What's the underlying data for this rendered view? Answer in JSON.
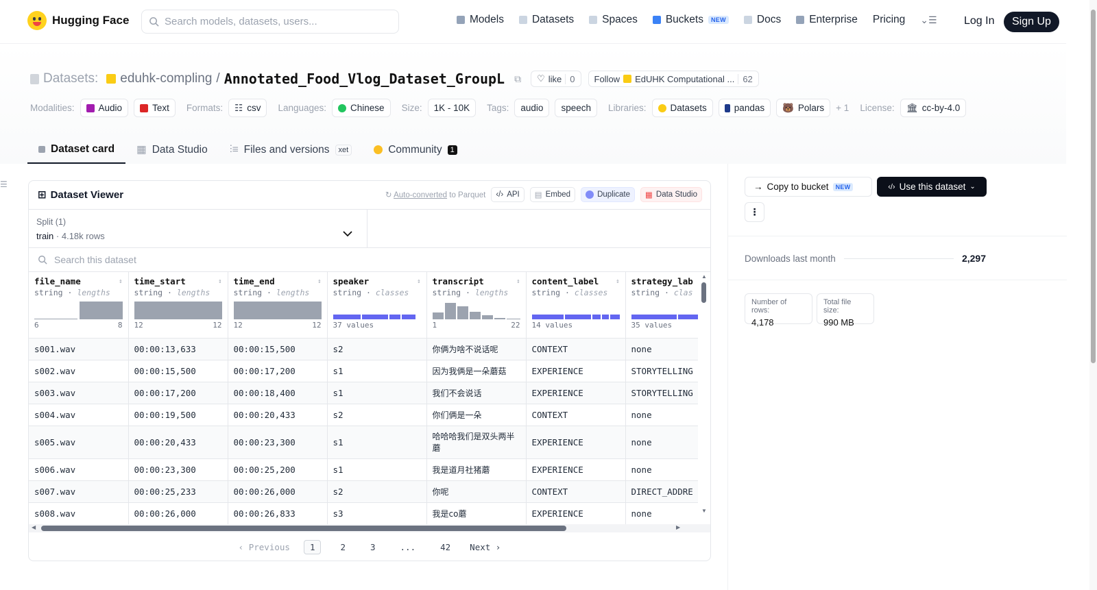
{
  "nav": {
    "brand": "Hugging Face",
    "search_placeholder": "Search models, datasets, users...",
    "links": [
      "Models",
      "Datasets",
      "Spaces",
      "Buckets",
      "Docs",
      "Enterprise",
      "Pricing"
    ],
    "buckets_badge": "NEW",
    "login": "Log In",
    "signup": "Sign Up"
  },
  "header": {
    "datasets_label": "Datasets:",
    "org": "eduhk-compling",
    "sep": "/",
    "repo": "Annotated_Food_Vlog_Dataset_GroupL",
    "like_label": "like",
    "like_count": "0",
    "follow_label": "Follow",
    "follow_org": "EdUHK Computational ...",
    "follow_count": "62"
  },
  "tags": {
    "modalities_label": "Modalities:",
    "modalities": [
      "Audio",
      "Text"
    ],
    "formats_label": "Formats:",
    "format": "csv",
    "languages_label": "Languages:",
    "language": "Chinese",
    "size_label": "Size:",
    "size": "1K - 10K",
    "tags_label": "Tags:",
    "tags": [
      "audio",
      "speech"
    ],
    "libraries_label": "Libraries:",
    "libraries": [
      "Datasets",
      "pandas",
      "Polars"
    ],
    "libraries_more": "+ 1",
    "license_label": "License:",
    "license": "cc-by-4.0"
  },
  "tabs": {
    "card": "Dataset card",
    "studio": "Data Studio",
    "files": "Files and versions",
    "xet": "xet",
    "community": "Community",
    "community_count": "1"
  },
  "viewer": {
    "title": "Dataset Viewer",
    "autoconv": "Auto-converted",
    "autoconv_rest": "to Parquet",
    "api": "API",
    "embed": "Embed",
    "duplicate": "Duplicate",
    "studio": "Data Studio",
    "split_label": "Split (1)",
    "split_name": "train",
    "split_rows": "4.18k rows",
    "search_placeholder": "Search this dataset"
  },
  "columns": [
    {
      "name": "file_name",
      "type": "string",
      "kind": "lengths",
      "min": "6",
      "max": "8"
    },
    {
      "name": "time_start",
      "type": "string",
      "kind": "lengths",
      "min": "12",
      "max": "12"
    },
    {
      "name": "time_end",
      "type": "string",
      "kind": "lengths",
      "min": "12",
      "max": "12"
    },
    {
      "name": "speaker",
      "type": "string",
      "kind": "classes",
      "values": "37 values"
    },
    {
      "name": "transcript",
      "type": "string",
      "kind": "lengths",
      "min": "1",
      "max": "22"
    },
    {
      "name": "content_label",
      "type": "string",
      "kind": "classes",
      "values": "14 values"
    },
    {
      "name": "strategy_lab",
      "type": "string",
      "kind": "clas",
      "values": "35 values"
    }
  ],
  "rows": [
    [
      "s001.wav",
      "00:00:13,633",
      "00:00:15,500",
      "s2",
      "你俩为啥不说话呢",
      "CONTEXT",
      "none"
    ],
    [
      "s002.wav",
      "00:00:15,500",
      "00:00:17,200",
      "s1",
      "因为我俩是一朵蘑菇",
      "EXPERIENCE",
      "STORYTELLING"
    ],
    [
      "s003.wav",
      "00:00:17,200",
      "00:00:18,400",
      "s1",
      "我们不会说话",
      "EXPERIENCE",
      "STORYTELLING"
    ],
    [
      "s004.wav",
      "00:00:19,500",
      "00:00:20,433",
      "s2",
      "你们俩是一朵",
      "CONTEXT",
      "none"
    ],
    [
      "s005.wav",
      "00:00:20,433",
      "00:00:23,300",
      "s1",
      "哈哈哈我们是双头两半蘑",
      "EXPERIENCE",
      "none"
    ],
    [
      "s006.wav",
      "00:00:23,300",
      "00:00:25,200",
      "s1",
      "我是道月社猪蘑",
      "EXPERIENCE",
      "none"
    ],
    [
      "s007.wav",
      "00:00:25,233",
      "00:00:26,000",
      "s2",
      "你呢",
      "CONTEXT",
      "DIRECT_ADDRE"
    ],
    [
      "s008.wav",
      "00:00:26,000",
      "00:00:26,833",
      "s3",
      "我是co蘑",
      "EXPERIENCE",
      "none"
    ]
  ],
  "pager": {
    "prev": "Previous",
    "pages": [
      "1",
      "2",
      "3",
      "...",
      "42"
    ],
    "next": "Next"
  },
  "sidebar": {
    "copy_bucket": "Copy to bucket",
    "copy_badge": "NEW",
    "use_dataset": "Use this dataset",
    "downloads_label": "Downloads last month",
    "downloads": "2,297",
    "rows_label": "Number of rows:",
    "rows": "4,178",
    "size_label": "Total file size:",
    "size": "990 MB"
  }
}
